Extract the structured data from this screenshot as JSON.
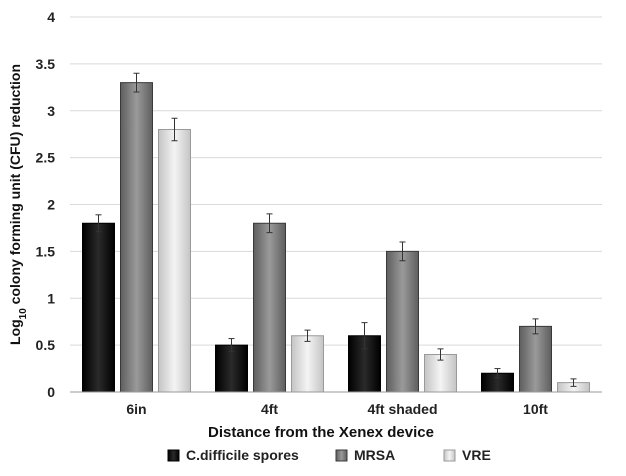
{
  "chart_data": {
    "type": "bar",
    "categories": [
      "6in",
      "4ft",
      "4ft shaded",
      "10ft"
    ],
    "series": [
      {
        "name": "C.difficile spores",
        "values": [
          1.8,
          0.5,
          0.6,
          0.2
        ],
        "errors": [
          0.09,
          0.07,
          0.14,
          0.05
        ],
        "color": "#111111"
      },
      {
        "name": "MRSA",
        "values": [
          3.3,
          1.8,
          1.5,
          0.7
        ],
        "errors": [
          0.1,
          0.1,
          0.1,
          0.08
        ],
        "color": "#808080"
      },
      {
        "name": "VRE",
        "values": [
          2.8,
          0.6,
          0.4,
          0.1
        ],
        "errors": [
          0.12,
          0.06,
          0.06,
          0.04
        ],
        "color": "#dcdcdc"
      }
    ],
    "ylim": [
      0,
      4
    ],
    "yticks": [
      0,
      0.5,
      1,
      1.5,
      2,
      2.5,
      3,
      3.5,
      4
    ],
    "ytick_labels": [
      "0",
      "0.5",
      "1",
      "1.5",
      "2",
      "2.5",
      "3",
      "3.5",
      "4"
    ],
    "ylabel": {
      "before": "Log",
      "subscript": "10",
      "after": " colony forming unit (CFU) reduction"
    },
    "xlabel": "Distance from the Xenex device",
    "grid": "horizontal",
    "legend_position": "bottom"
  }
}
